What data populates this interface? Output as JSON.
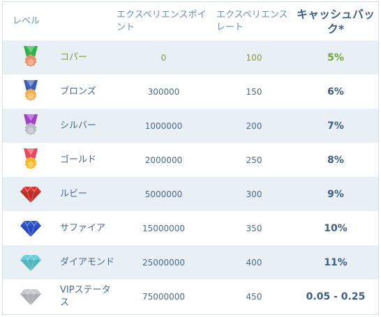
{
  "header": {
    "level": "レベル",
    "points": "エクスペリエンスポイント",
    "rate": "エクスペリエンスレート",
    "cashback": "キャッシュバック*"
  },
  "rows": [
    {
      "name": "コパー",
      "points": "0",
      "rate": "100",
      "cashback": "5%",
      "icon": "copper-medal-icon",
      "ribbon": "#2db34a",
      "medal": "#e8906a"
    },
    {
      "name": "ブロンズ",
      "points": "300000",
      "rate": "150",
      "cashback": "6%",
      "icon": "bronze-medal-icon",
      "ribbon": "#3b5fb8",
      "medal": "#f0b050"
    },
    {
      "name": "シルバー",
      "points": "1000000",
      "rate": "200",
      "cashback": "7%",
      "icon": "silver-medal-icon",
      "ribbon": "#a042c8",
      "medal": "#b8b8c0"
    },
    {
      "name": "ゴールド",
      "points": "2000000",
      "rate": "250",
      "cashback": "8%",
      "icon": "gold-medal-icon",
      "ribbon": "#e84858",
      "medal": "#f5b820"
    },
    {
      "name": "ルビー",
      "points": "5000000",
      "rate": "300",
      "cashback": "9%",
      "icon": "ruby-gem-icon",
      "gem": "#d8342c"
    },
    {
      "name": "サファイア",
      "points": "15000000",
      "rate": "350",
      "cashback": "10%",
      "icon": "sapphire-gem-icon",
      "gem": "#2f55d4"
    },
    {
      "name": "ダイアモンド",
      "points": "25000000",
      "rate": "400",
      "cashback": "11%",
      "icon": "diamond-gem-icon",
      "gem": "#5ccfd8"
    },
    {
      "name": "VIPステータス",
      "points": "75000000",
      "rate": "450",
      "cashback": "0.05 - 0.25",
      "icon": "vip-gem-icon",
      "gem": "#c4c8cc"
    }
  ]
}
